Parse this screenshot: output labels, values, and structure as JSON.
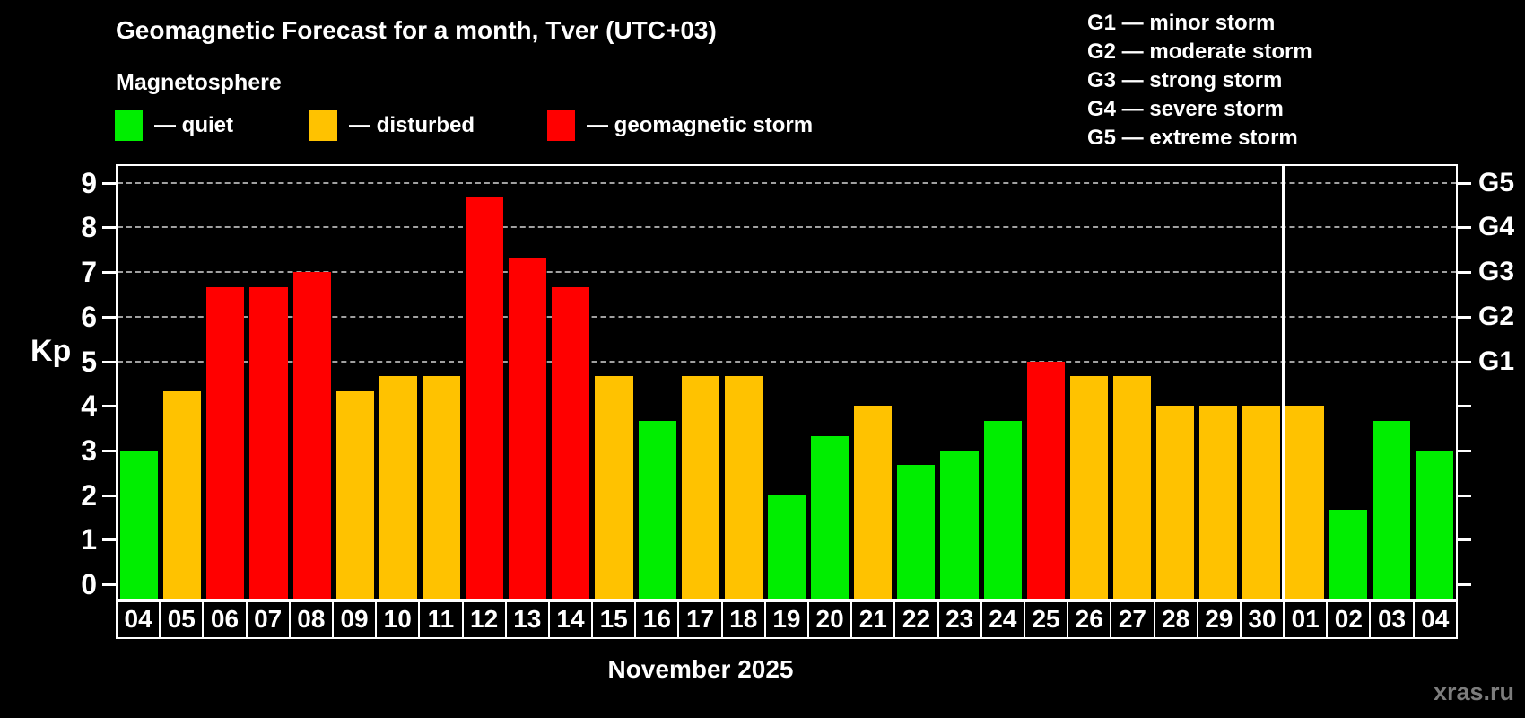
{
  "title": "Geomagnetic Forecast for a month, Tver (UTC+03)",
  "subtitle": "Magnetosphere",
  "legend": {
    "quiet": "— quiet",
    "disturbed": "— disturbed",
    "storm": "— geomagnetic storm"
  },
  "g_legend": [
    "G1 — minor storm",
    "G2 — moderate storm",
    "G3 — strong storm",
    "G4 — severe storm",
    "G5 — extreme storm"
  ],
  "colors": {
    "quiet": "#00ee00",
    "disturbed": "#ffc200",
    "storm": "#ff0000",
    "grid": "#a9a9a9",
    "axis": "#ffffff",
    "watermark": "#7d7d7d"
  },
  "y_axis": {
    "label": "Kp",
    "ticks": [
      "0",
      "1",
      "2",
      "3",
      "4",
      "5",
      "6",
      "7",
      "8",
      "9"
    ]
  },
  "right_axis": {
    "levels": [
      5,
      6,
      7,
      8,
      9
    ],
    "labels": [
      "G1",
      "G2",
      "G3",
      "G4",
      "G5"
    ]
  },
  "x_label": "November 2025",
  "watermark": "xras.ru",
  "chart_data": {
    "type": "bar",
    "title": "Geomagnetic Forecast for a month, Tver (UTC+03)",
    "xlabel": "November 2025",
    "ylabel": "Kp",
    "ylim": [
      0,
      9
    ],
    "grid_levels": [
      5,
      6,
      7,
      8,
      9
    ],
    "legend_position": "top",
    "categories": [
      "04",
      "05",
      "06",
      "07",
      "08",
      "09",
      "10",
      "11",
      "12",
      "13",
      "14",
      "15",
      "16",
      "17",
      "18",
      "19",
      "20",
      "21",
      "22",
      "23",
      "24",
      "25",
      "26",
      "27",
      "28",
      "29",
      "30",
      "01",
      "02",
      "03",
      "04"
    ],
    "values": [
      3,
      4.33,
      6.67,
      6.67,
      7,
      4.33,
      4.67,
      4.67,
      8.67,
      7.33,
      6.67,
      4.67,
      3.67,
      4.67,
      4.67,
      2,
      3.33,
      4,
      2.67,
      3,
      3.67,
      5,
      4.67,
      4.67,
      4,
      4,
      4,
      4,
      1.67,
      3.67,
      3
    ],
    "statuses": [
      "quiet",
      "disturbed",
      "storm",
      "storm",
      "storm",
      "disturbed",
      "disturbed",
      "disturbed",
      "storm",
      "storm",
      "storm",
      "disturbed",
      "quiet",
      "disturbed",
      "disturbed",
      "quiet",
      "quiet",
      "disturbed",
      "quiet",
      "quiet",
      "quiet",
      "storm",
      "disturbed",
      "disturbed",
      "disturbed",
      "disturbed",
      "disturbed",
      "disturbed",
      "quiet",
      "quiet",
      "quiet"
    ],
    "month_break_index": 27
  }
}
